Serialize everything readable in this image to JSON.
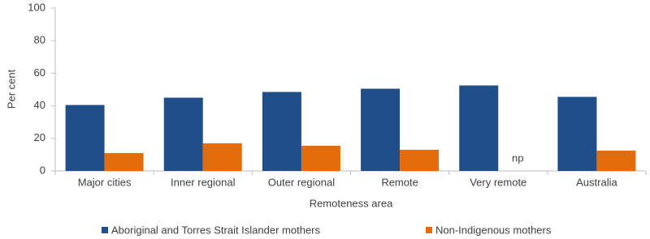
{
  "chart_data": {
    "type": "bar",
    "x_label": "Remoteness area",
    "y_label": "Per cent",
    "categories": [
      "Major cities",
      "Inner regional",
      "Outer regional",
      "Remote",
      "Very remote",
      "Australia"
    ],
    "series": [
      {
        "name": "Aboriginal and Torres Strait Islander mothers",
        "color": "#1f4e89",
        "values": [
          40.5,
          45,
          48.5,
          50.5,
          52.5,
          45.5
        ]
      },
      {
        "name": "Non-Indigenous mothers",
        "color": "#e46c0a",
        "values": [
          11,
          17,
          15.5,
          13,
          null,
          12.5
        ],
        "value_labels": [
          null,
          null,
          null,
          null,
          "np",
          null
        ]
      }
    ],
    "ylim": [
      0,
      100
    ],
    "yticks": [
      0,
      20,
      40,
      60,
      80,
      100
    ],
    "grid": false
  }
}
